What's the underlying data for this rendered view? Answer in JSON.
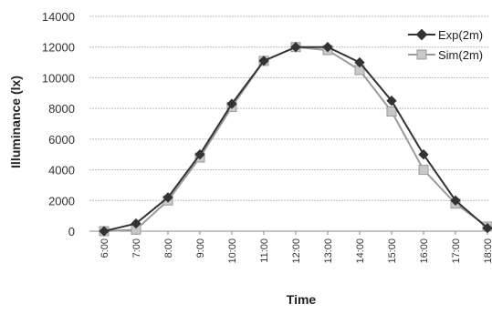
{
  "chart_data": {
    "type": "line",
    "title": "",
    "xlabel": "Time",
    "ylabel": "Illuminance (lx)",
    "categories": [
      "6:00",
      "7:00",
      "8:00",
      "9:00",
      "10:00",
      "11:00",
      "12:00",
      "13:00",
      "14:00",
      "15:00",
      "16:00",
      "17:00",
      "18:00"
    ],
    "yticks": [
      0,
      2000,
      4000,
      6000,
      8000,
      10000,
      12000,
      14000
    ],
    "ylim": [
      0,
      14000
    ],
    "grid": true,
    "legend_position": "top-right",
    "series": [
      {
        "name": "Exp(2m)",
        "color": "#333333",
        "marker": "diamond",
        "values": [
          0,
          500,
          2200,
          5000,
          8300,
          11100,
          12000,
          12000,
          11000,
          8500,
          5000,
          2000,
          200
        ]
      },
      {
        "name": "Sim(2m)",
        "color": "#9a9a9a",
        "marker": "square",
        "values": [
          0,
          100,
          2000,
          4800,
          8100,
          11100,
          12000,
          11800,
          10500,
          7800,
          4000,
          1800,
          300
        ]
      }
    ]
  }
}
